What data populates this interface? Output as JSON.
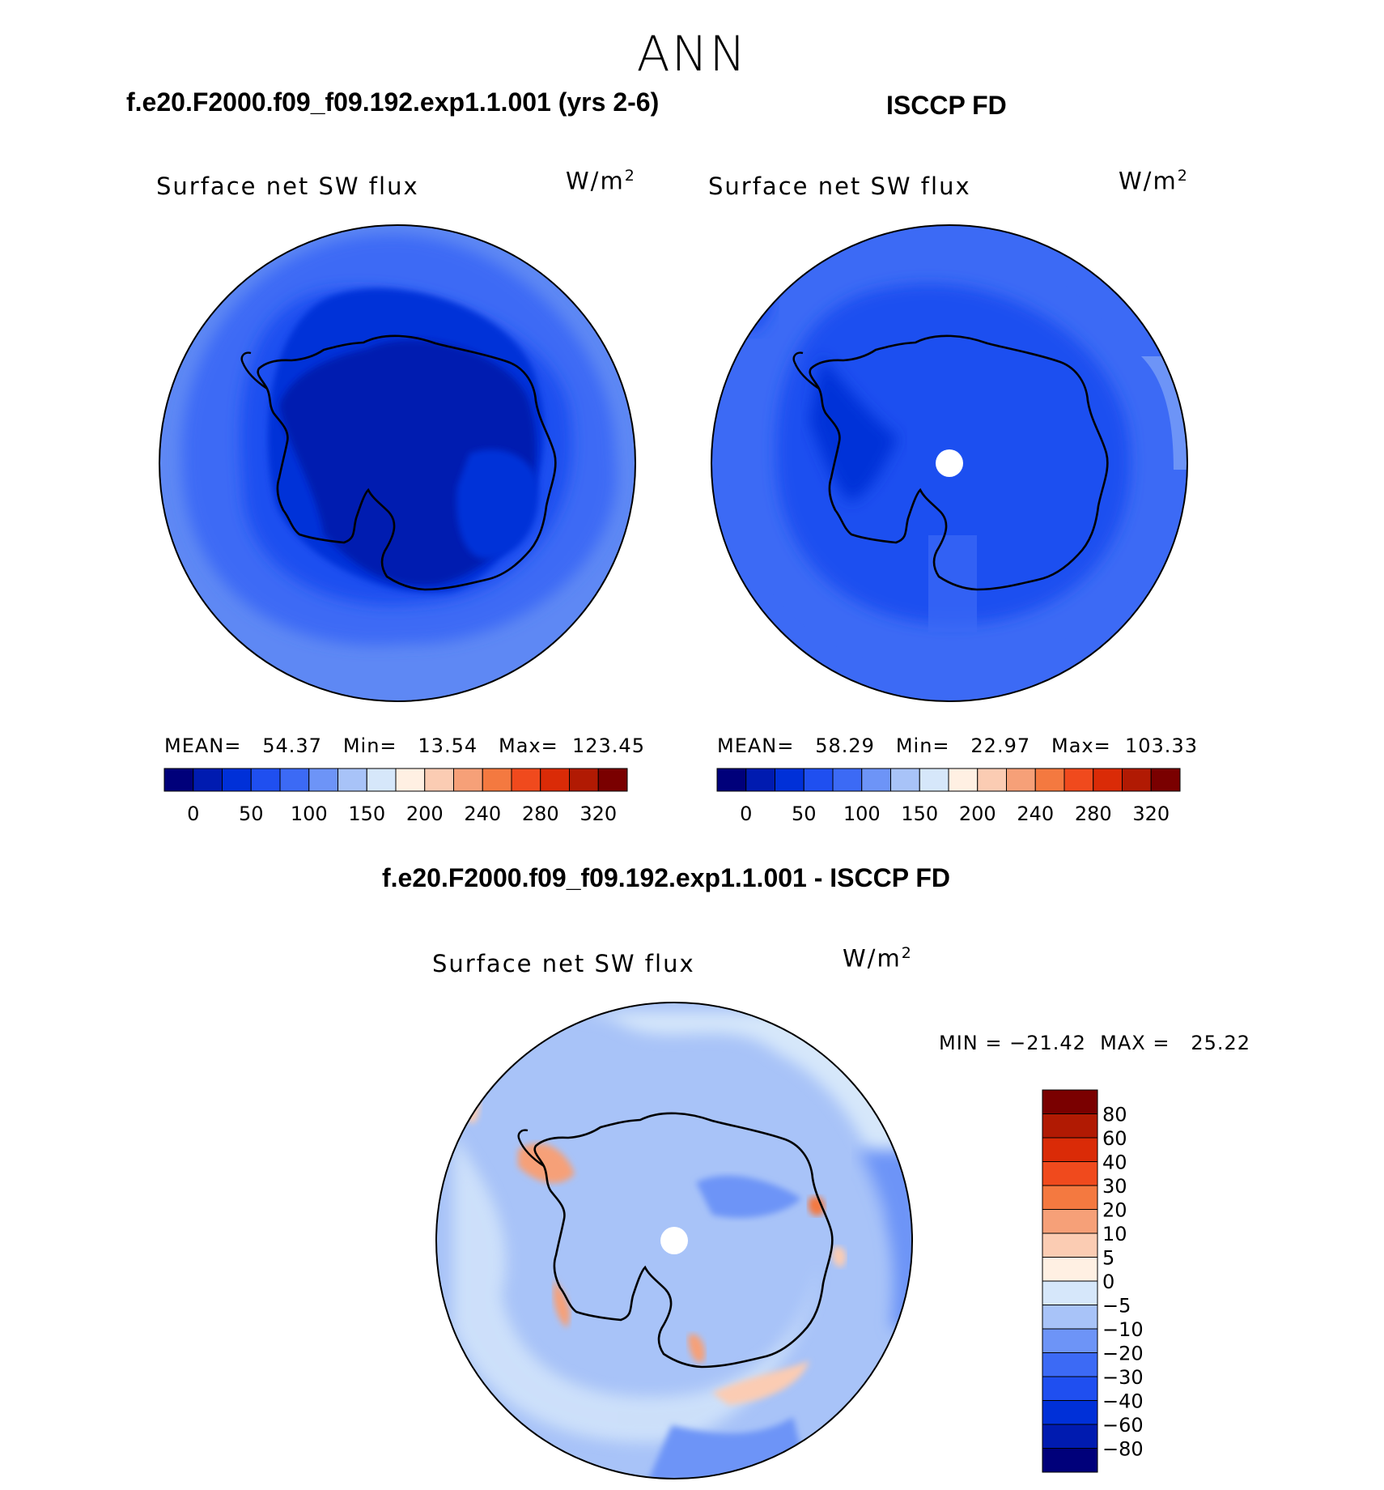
{
  "header": {
    "season": "ANN",
    "model_case": "f.e20.F2000.f09_f09.192.exp1.1.001 (yrs 2-6)",
    "obs_case": "ISCCP FD",
    "diff_case": "f.e20.F2000.f09_f09.192.exp1.1.001 - ISCCP FD"
  },
  "panels": {
    "model": {
      "variable": "Surface net SW flux",
      "unit_base": "W/m",
      "unit_exp": "2",
      "stats": "MEAN=   54.37   Min=   13.54   Max=  123.45"
    },
    "obs": {
      "variable": "Surface net SW flux",
      "unit_base": "W/m",
      "unit_exp": "2",
      "stats": "MEAN=   58.29   Min=   22.97   Max=  103.33"
    },
    "diff": {
      "variable": "Surface net SW flux",
      "unit_base": "W/m",
      "unit_exp": "2",
      "stats": "MIN = −21.42  MAX =   25.22"
    }
  },
  "chart_data": [
    {
      "type": "heatmap",
      "projection": "south-polar-stereographic",
      "title": "f.e20.F2000.f09_f09.192.exp1.1.001 (yrs 2-6)",
      "variable": "Surface net SW flux",
      "units": "W/m2",
      "mean": 54.37,
      "min": 13.54,
      "max": 123.45,
      "colorbar": {
        "orientation": "horizontal",
        "levels": [
          0,
          25,
          50,
          75,
          100,
          125,
          150,
          175,
          200,
          220,
          240,
          260,
          280,
          300,
          320
        ],
        "tick_labels": [
          "0",
          "50",
          "100",
          "150",
          "200",
          "240",
          "280",
          "320"
        ],
        "colors": [
          "#00007a",
          "#001bb0",
          "#0030d8",
          "#1f4ff0",
          "#3c6af5",
          "#6d94f7",
          "#a8c3f8",
          "#d6e7fa",
          "#fff0e3",
          "#fbccb3",
          "#f6a078",
          "#f47940",
          "#f04a1d",
          "#da2b07",
          "#b11a03",
          "#7a0000"
        ]
      }
    },
    {
      "type": "heatmap",
      "projection": "south-polar-stereographic",
      "title": "ISCCP FD",
      "variable": "Surface net SW flux",
      "units": "W/m2",
      "mean": 58.29,
      "min": 22.97,
      "max": 103.33,
      "colorbar": {
        "orientation": "horizontal",
        "levels": [
          0,
          25,
          50,
          75,
          100,
          125,
          150,
          175,
          200,
          220,
          240,
          260,
          280,
          300,
          320
        ],
        "tick_labels": [
          "0",
          "50",
          "100",
          "150",
          "200",
          "240",
          "280",
          "320"
        ],
        "colors": [
          "#00007a",
          "#001bb0",
          "#0030d8",
          "#1f4ff0",
          "#3c6af5",
          "#6d94f7",
          "#a8c3f8",
          "#d6e7fa",
          "#fff0e3",
          "#fbccb3",
          "#f6a078",
          "#f47940",
          "#f04a1d",
          "#da2b07",
          "#b11a03",
          "#7a0000"
        ]
      }
    },
    {
      "type": "heatmap",
      "projection": "south-polar-stereographic",
      "title": "f.e20.F2000.f09_f09.192.exp1.1.001 - ISCCP FD",
      "variable": "Surface net SW flux",
      "units": "W/m2",
      "min": -21.42,
      "max": 25.22,
      "colorbar": {
        "orientation": "vertical",
        "levels": [
          80,
          60,
          40,
          30,
          20,
          10,
          5,
          0,
          -5,
          -10,
          -20,
          -30,
          -40,
          -60,
          -80
        ],
        "tick_labels": [
          "80",
          "60",
          "40",
          "30",
          "20",
          "10",
          "5",
          "0",
          "−5",
          "−10",
          "−20",
          "−30",
          "−40",
          "−60",
          "−80"
        ],
        "colors_top_to_bottom": [
          "#7a0000",
          "#b11a03",
          "#da2b07",
          "#f04a1d",
          "#f47940",
          "#f6a078",
          "#fbccb3",
          "#fff0e3",
          "#d6e7fa",
          "#a8c3f8",
          "#6d94f7",
          "#3c6af5",
          "#1f4ff0",
          "#0030d8",
          "#001bb0",
          "#00007a"
        ]
      }
    }
  ]
}
